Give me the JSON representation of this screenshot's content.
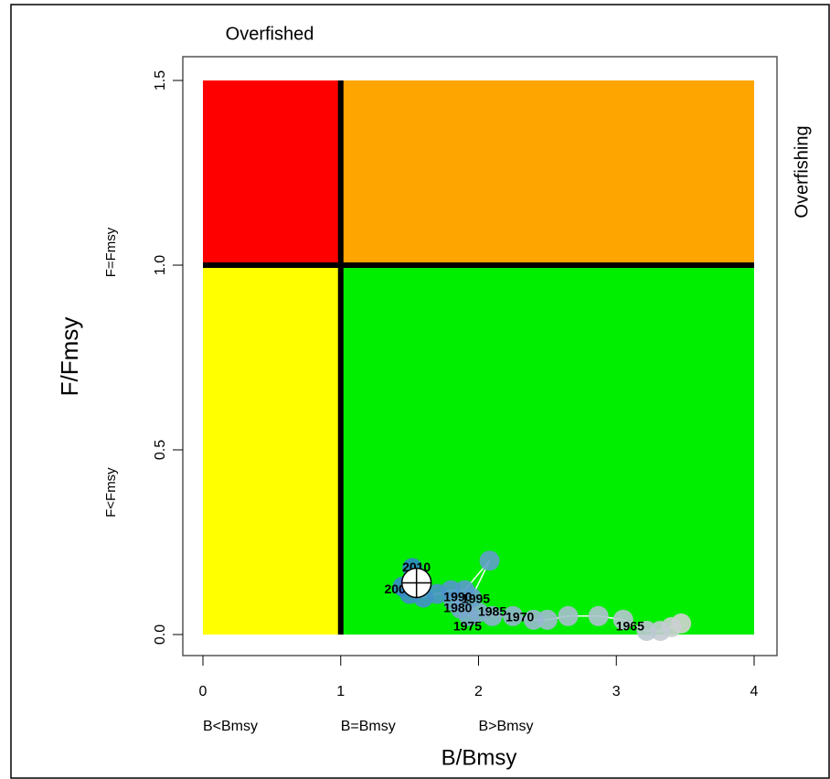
{
  "chart_data": {
    "type": "kobe",
    "top_label": "Overfished",
    "right_label": "Overfishing",
    "xlabel": "B/Bmsy",
    "ylabel": "F/Fmsy",
    "x_zone_labels": [
      {
        "value": 0,
        "label": "B<Bmsy"
      },
      {
        "value": 1,
        "label": "B=Bmsy"
      },
      {
        "value": 2,
        "label": "B>Bmsy"
      }
    ],
    "y_zone_labels": [
      {
        "value": 1,
        "label": "F=Fmsy"
      },
      {
        "value": 0.35,
        "label": "F<Fmsy"
      }
    ],
    "xlim": [
      0,
      4
    ],
    "ylim": [
      0,
      1.5
    ],
    "xticks": [
      0,
      1,
      2,
      3,
      4
    ],
    "yticks": [
      {
        "value": 0,
        "label": "0.0"
      },
      {
        "value": 0.5,
        "label": "0.5"
      },
      {
        "value": 1,
        "label": "1.0"
      },
      {
        "value": 1.5,
        "label": "1.5"
      }
    ],
    "zones": [
      {
        "x": [
          0,
          1
        ],
        "y": [
          1,
          1.5
        ],
        "color": "#ff0000"
      },
      {
        "x": [
          1,
          4
        ],
        "y": [
          1,
          1.5
        ],
        "color": "#ffa500"
      },
      {
        "x": [
          0,
          1
        ],
        "y": [
          0,
          1
        ],
        "color": "#ffff00"
      },
      {
        "x": [
          1,
          4
        ],
        "y": [
          0,
          1
        ],
        "color": "#00ee00"
      }
    ],
    "reference_x": 1,
    "reference_y": 1,
    "x": [
      3.47,
      3.4,
      3.32,
      3.22,
      3.05,
      2.87,
      2.65,
      2.5,
      2.4,
      2.25,
      2.1,
      2.0,
      1.93,
      1.87,
      1.82,
      1.95,
      2.08,
      1.9,
      1.8,
      1.7,
      1.6,
      1.5,
      1.45,
      1.52
    ],
    "y": [
      0.03,
      0.02,
      0.01,
      0.01,
      0.04,
      0.05,
      0.05,
      0.04,
      0.04,
      0.05,
      0.05,
      0.06,
      0.05,
      0.07,
      0.09,
      0.1,
      0.2,
      0.12,
      0.12,
      0.11,
      0.1,
      0.11,
      0.13,
      0.18
    ],
    "point_color_start": "#d2d2d2",
    "point_color_end": "#2f86c8",
    "current": {
      "x": 1.55,
      "y": 0.14
    },
    "year_labels": [
      {
        "text": "1965",
        "x": 3.1,
        "y": 0.02
      },
      {
        "text": "1970",
        "x": 2.3,
        "y": 0.045
      },
      {
        "text": "1975",
        "x": 1.92,
        "y": 0.02
      },
      {
        "text": "1980",
        "x": 1.85,
        "y": 0.07
      },
      {
        "text": "1985",
        "x": 2.1,
        "y": 0.06
      },
      {
        "text": "1990",
        "x": 1.85,
        "y": 0.1
      },
      {
        "text": "1995",
        "x": 1.98,
        "y": 0.095
      },
      {
        "text": "2000",
        "x": 1.42,
        "y": 0.12
      },
      {
        "text": "2010",
        "x": 1.55,
        "y": 0.18
      }
    ]
  }
}
